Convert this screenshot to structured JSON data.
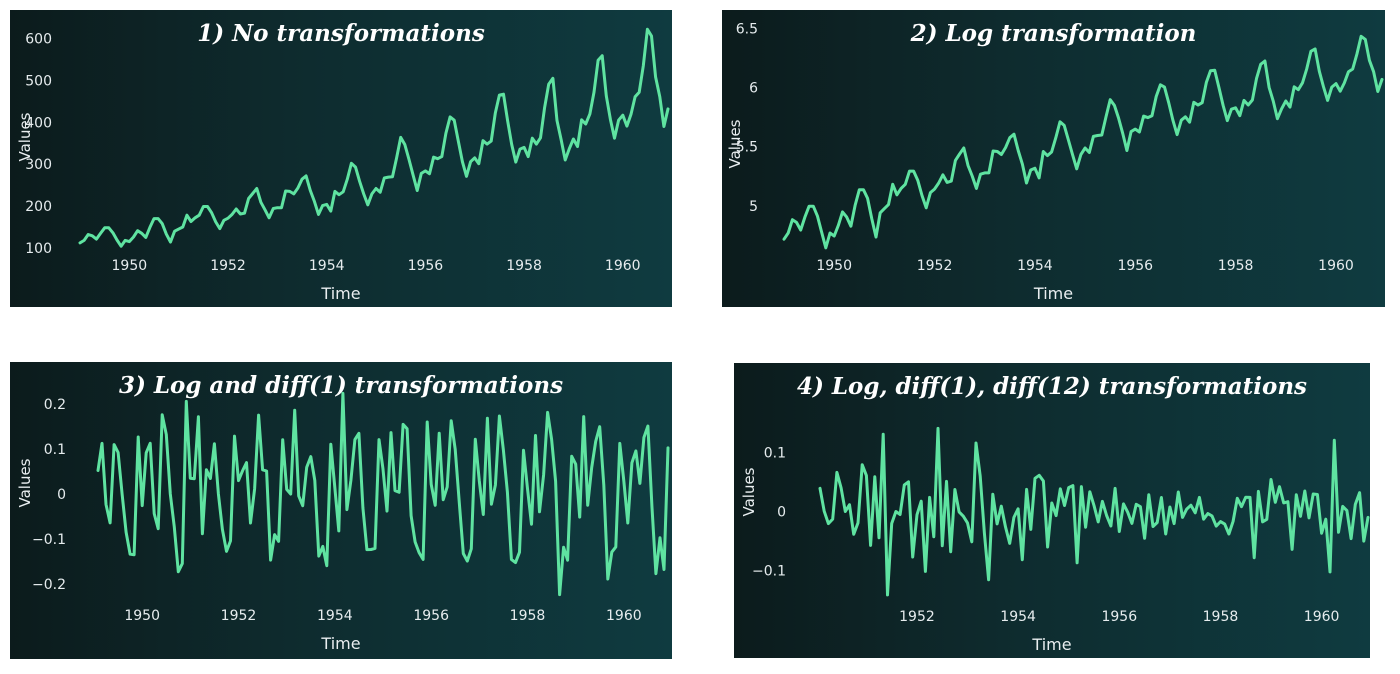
{
  "colors": {
    "line": "#5fe3a1"
  },
  "chart_data": [
    {
      "type": "line",
      "title": "1) No transformations",
      "xlabel": "Time",
      "ylabel": "Values",
      "x_ticks": [
        "1950",
        "1952",
        "1954",
        "1956",
        "1958",
        "1960"
      ],
      "y_ticks": [
        "100",
        "200",
        "300",
        "400",
        "500",
        "600"
      ],
      "y_tick_values": [
        100,
        200,
        300,
        400,
        500,
        600
      ],
      "xlim": [
        1949.0,
        1960.917
      ],
      "ylim": [
        95,
        630
      ],
      "x_start": "1949-01",
      "x_step": "1 month",
      "series": [
        {
          "values": []
        }
      ]
    },
    {
      "type": "line",
      "title": "2) Log transformation",
      "xlabel": "Time",
      "ylabel": "Values",
      "x_ticks": [
        "1950",
        "1952",
        "1954",
        "1956",
        "1958",
        "1960"
      ],
      "y_ticks": [
        "5",
        "5.5",
        "6",
        "6.5"
      ],
      "y_tick_values": [
        5,
        5.5,
        6,
        6.5
      ],
      "xlim": [
        1949.0,
        1960.917
      ],
      "ylim": [
        4.61,
        6.52
      ],
      "x_start": "1949-01",
      "x_step": "1 month",
      "series": [
        {
          "values": []
        }
      ]
    },
    {
      "type": "line",
      "title": "3) Log and diff(1) transformations",
      "xlabel": "Time",
      "ylabel": "Values",
      "x_ticks": [
        "1950",
        "1952",
        "1954",
        "1956",
        "1958",
        "1960"
      ],
      "y_ticks": [
        "0.2",
        "0.1",
        "0",
        "−0.1",
        "−0.2"
      ],
      "y_tick_values": [
        0.2,
        0.1,
        0,
        -0.1,
        -0.2
      ],
      "xlim": [
        1949.083,
        1960.917
      ],
      "ylim": [
        -0.235,
        0.235
      ],
      "x_start": "1949-02",
      "x_step": "1 month",
      "series": [
        {
          "values": []
        }
      ]
    },
    {
      "type": "line",
      "title": "4) Log, diff(1), diff(12) transformations",
      "xlabel": "Time",
      "ylabel": "Values",
      "x_ticks": [
        "1952",
        "1954",
        "1956",
        "1958",
        "1960"
      ],
      "y_ticks": [
        "0.1",
        "0",
        "−0.1"
      ],
      "y_tick_values": [
        0.1,
        0,
        -0.1
      ],
      "xlim": [
        1950.083,
        1960.917
      ],
      "ylim": [
        -0.155,
        0.16
      ],
      "x_start": "1950-02",
      "x_step": "1 month",
      "series": [
        {
          "values": []
        }
      ]
    }
  ],
  "airline_passengers": [
    112,
    118,
    132,
    129,
    121,
    135,
    148,
    148,
    136,
    119,
    104,
    118,
    115,
    126,
    141,
    135,
    125,
    149,
    170,
    170,
    158,
    133,
    114,
    140,
    145,
    150,
    178,
    163,
    172,
    178,
    199,
    199,
    184,
    162,
    146,
    166,
    171,
    180,
    193,
    181,
    183,
    218,
    230,
    242,
    209,
    191,
    172,
    194,
    196,
    196,
    236,
    235,
    229,
    243,
    264,
    272,
    237,
    211,
    180,
    201,
    204,
    188,
    235,
    227,
    234,
    264,
    302,
    293,
    259,
    229,
    203,
    229,
    242,
    233,
    267,
    269,
    270,
    315,
    364,
    347,
    312,
    274,
    237,
    278,
    284,
    277,
    317,
    313,
    318,
    374,
    413,
    405,
    355,
    306,
    271,
    306,
    315,
    301,
    356,
    348,
    355,
    422,
    465,
    467,
    404,
    347,
    305,
    336,
    340,
    318,
    362,
    348,
    363,
    435,
    491,
    505,
    404,
    359,
    310,
    337,
    360,
    342,
    406,
    396,
    420,
    472,
    548,
    559,
    463,
    407,
    362,
    405,
    417,
    391,
    419,
    461,
    472,
    535,
    622,
    606,
    508,
    461,
    390,
    432
  ]
}
